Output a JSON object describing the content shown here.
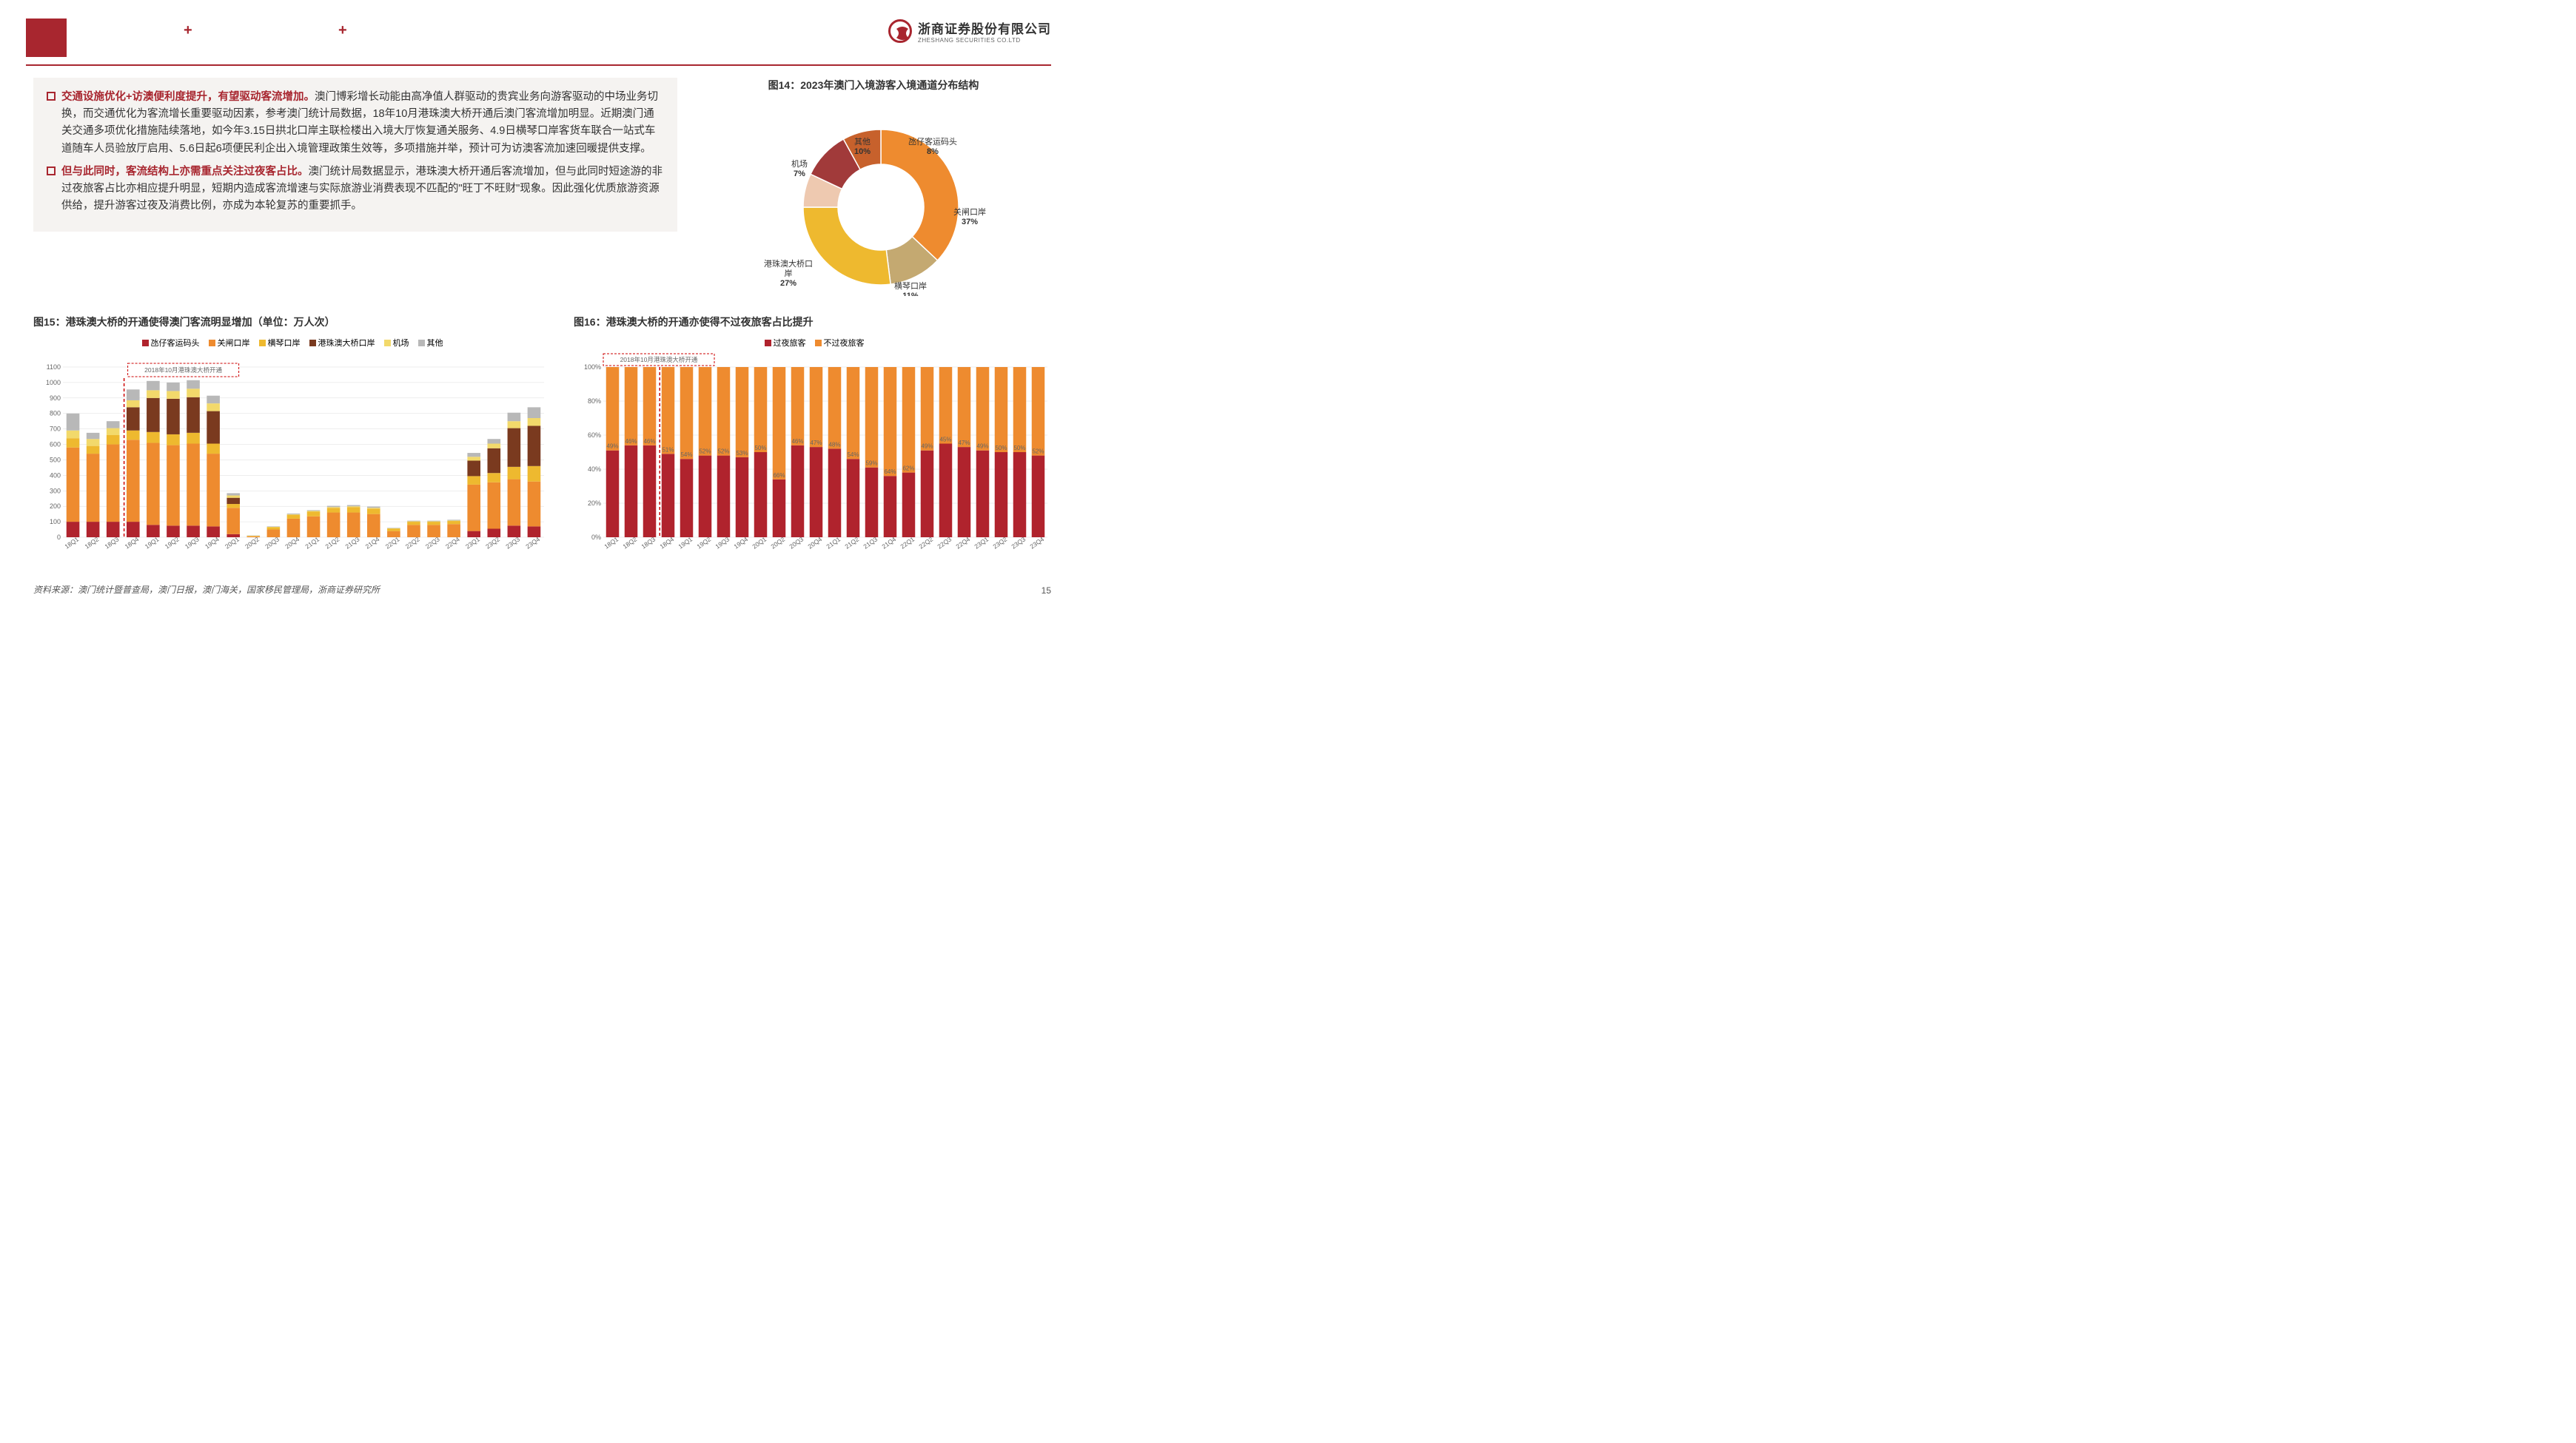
{
  "header": {
    "company_cn": "浙商证券股份有限公司",
    "company_en": "ZHESHANG SECURITIES CO.LTD"
  },
  "bullets": [
    {
      "lead": "交通设施优化+访澳便利度提升，有望驱动客流增加。",
      "rest": "澳门博彩增长动能由高净值人群驱动的贵宾业务向游客驱动的中场业务切换，而交通优化为客流增长重要驱动因素，参考澳门统计局数据，18年10月港珠澳大桥开通后澳门客流增加明显。近期澳门通关交通多项优化措施陆续落地，如今年3.15日拱北口岸主联检楼出入境大厅恢复通关服务、4.9日横琴口岸客货车联合一站式车道随车人员验放厅启用、5.6日起6项便民利企出入境管理政策生效等，多项措施并举，预计可为访澳客流加速回暖提供支撑。"
    },
    {
      "lead": "但与此同时，客流结构上亦需重点关注过夜客占比。",
      "rest": "澳门统计局数据显示，港珠澳大桥开通后客流增加，但与此同时短途游的非过夜旅客占比亦相应提升明显，短期内造成客流增速与实际旅游业消费表现不匹配的\"旺丁不旺财\"现象。因此强化优质旅游资源供给，提升游客过夜及消费比例，亦成为本轮复苏的重要抓手。"
    }
  ],
  "donut": {
    "title": "图14：2023年澳门入境游客入境通道分布结构",
    "slices": [
      {
        "label": "关闸口岸",
        "pct": 37,
        "color": "#ee8b2f"
      },
      {
        "label": "横琴口岸",
        "pct": 11,
        "color": "#c4a971"
      },
      {
        "label": "港珠澳大桥口岸",
        "pct": 27,
        "color": "#eeb92f"
      },
      {
        "label": "机场",
        "pct": 7,
        "color": "#eec9b0"
      },
      {
        "label": "其他",
        "pct": 10,
        "color": "#a13a3a"
      },
      {
        "label": "氹仔客运码头",
        "pct": 8,
        "color": "#c7612c"
      }
    ]
  },
  "bar15": {
    "title": "图15：港珠澳大桥的开通使得澳门客流明显增加（单位：万人次）",
    "annotation": "2018年10月港珠澳大桥开通",
    "annotation_x_idx": 3,
    "ymax": 1100,
    "ystep": 100,
    "categories": [
      "18Q1",
      "18Q2",
      "18Q3",
      "18Q4",
      "19Q1",
      "19Q2",
      "19Q3",
      "19Q4",
      "20Q1",
      "20Q2",
      "20Q3",
      "20Q4",
      "21Q1",
      "21Q2",
      "21Q3",
      "21Q4",
      "22Q1",
      "22Q2",
      "22Q3",
      "22Q4",
      "23Q1",
      "23Q2",
      "23Q3",
      "23Q4"
    ],
    "series": [
      {
        "name": "氹仔客运码头",
        "color": "#b0232d"
      },
      {
        "name": "关闸口岸",
        "color": "#ee8b2f"
      },
      {
        "name": "横琴口岸",
        "color": "#eeb92f"
      },
      {
        "name": "港珠澳大桥口岸",
        "color": "#7a3a1f"
      },
      {
        "name": "机场",
        "color": "#f2d96b"
      },
      {
        "name": "其他",
        "color": "#b8b8b8"
      }
    ],
    "stacks": [
      [
        100,
        480,
        60,
        0,
        50,
        110
      ],
      [
        100,
        440,
        50,
        0,
        45,
        40
      ],
      [
        100,
        500,
        60,
        0,
        45,
        45
      ],
      [
        100,
        530,
        60,
        150,
        45,
        70
      ],
      [
        80,
        530,
        70,
        220,
        50,
        60
      ],
      [
        75,
        520,
        70,
        230,
        50,
        55
      ],
      [
        75,
        530,
        70,
        230,
        55,
        55
      ],
      [
        70,
        470,
        65,
        210,
        50,
        50
      ],
      [
        20,
        170,
        25,
        40,
        15,
        15
      ],
      [
        0,
        5,
        3,
        0,
        2,
        2
      ],
      [
        0,
        50,
        15,
        0,
        2,
        3
      ],
      [
        0,
        120,
        25,
        0,
        3,
        5
      ],
      [
        0,
        135,
        30,
        0,
        5,
        5
      ],
      [
        0,
        160,
        30,
        0,
        5,
        8
      ],
      [
        0,
        160,
        35,
        0,
        5,
        8
      ],
      [
        0,
        150,
        35,
        0,
        5,
        8
      ],
      [
        0,
        40,
        15,
        0,
        3,
        3
      ],
      [
        0,
        80,
        20,
        0,
        3,
        4
      ],
      [
        0,
        80,
        20,
        0,
        3,
        4
      ],
      [
        0,
        85,
        20,
        0,
        3,
        5
      ],
      [
        40,
        300,
        55,
        100,
        25,
        25
      ],
      [
        55,
        300,
        60,
        160,
        30,
        30
      ],
      [
        75,
        300,
        80,
        250,
        45,
        55
      ],
      [
        70,
        290,
        100,
        260,
        50,
        70
      ]
    ]
  },
  "bar16": {
    "title": "图16：港珠澳大桥的开通亦使得不过夜旅客占比提升",
    "annotation": "2018年10月港珠澳大桥开通",
    "annotation_x_idx": 3,
    "categories": [
      "18Q1",
      "18Q2",
      "18Q3",
      "18Q4",
      "19Q1",
      "19Q2",
      "19Q3",
      "19Q4",
      "20Q1",
      "20Q2",
      "20Q3",
      "20Q4",
      "21Q1",
      "21Q2",
      "21Q3",
      "21Q4",
      "22Q1",
      "22Q2",
      "22Q3",
      "22Q4",
      "23Q1",
      "23Q2",
      "23Q3",
      "23Q4"
    ],
    "series": [
      {
        "name": "过夜旅客",
        "color": "#b0232d"
      },
      {
        "name": "不过夜旅客",
        "color": "#ee8b2f"
      }
    ],
    "overnight_pct": [
      51,
      54,
      54,
      49,
      46,
      48,
      48,
      47,
      50,
      34,
      54,
      53,
      52,
      46,
      41,
      36,
      38,
      51,
      55,
      53,
      51,
      50,
      50,
      48
    ],
    "not_overnight_pct": [
      49,
      46,
      46,
      51,
      54,
      52,
      52,
      53,
      50,
      66,
      46,
      47,
      48,
      54,
      59,
      64,
      62,
      49,
      45,
      47,
      49,
      50,
      50,
      52
    ]
  },
  "source": "资料来源：澳门统计暨普查局，澳门日报，澳门海关，国家移民管理局，浙商证券研究所",
  "page": "15"
}
